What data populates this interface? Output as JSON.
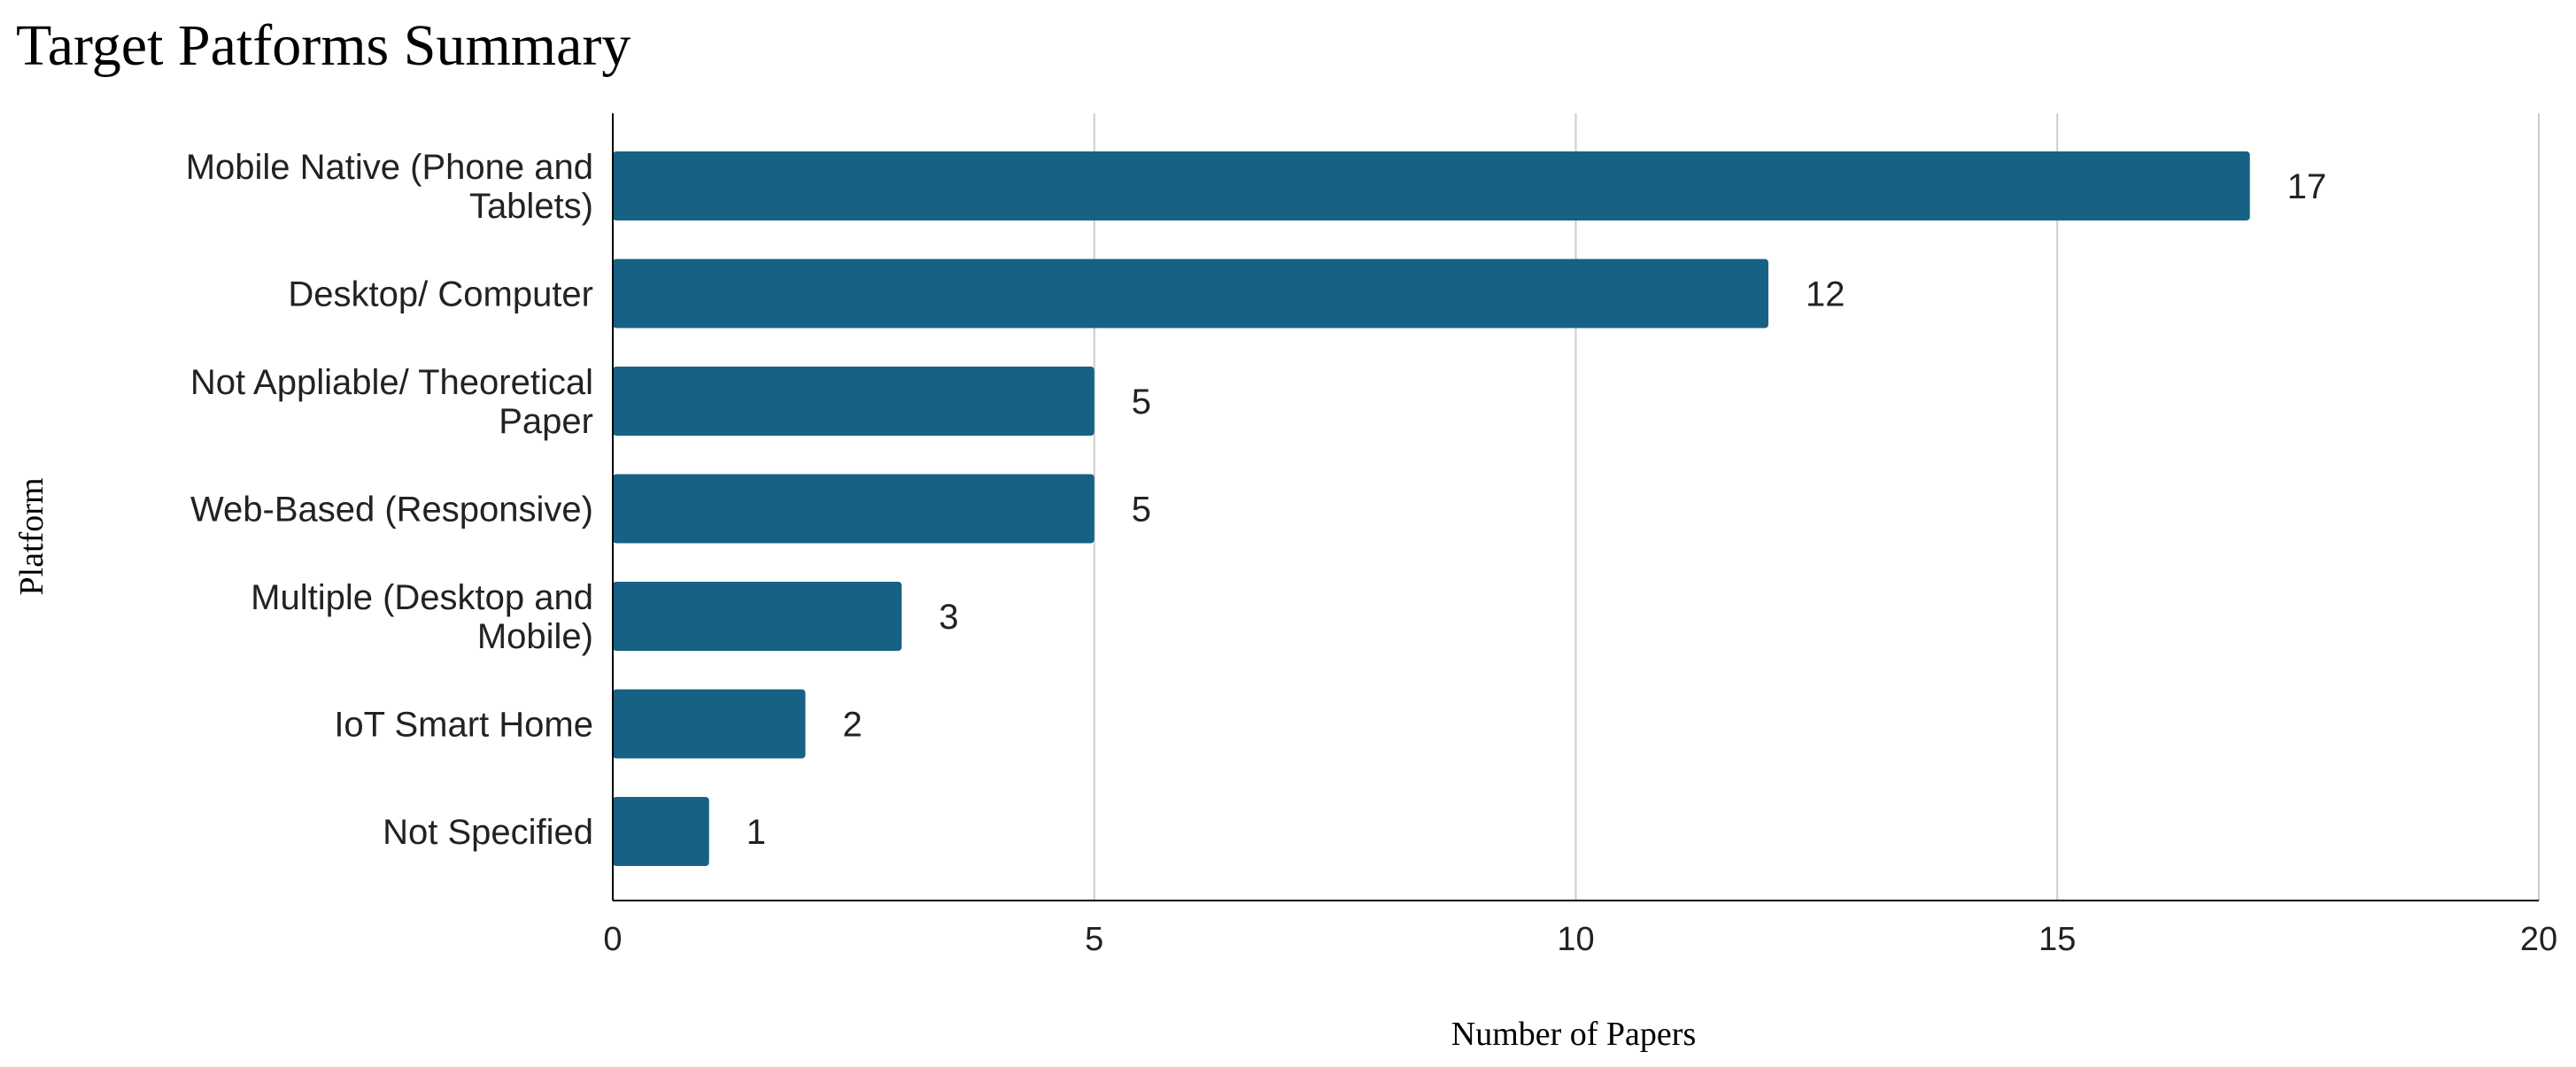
{
  "chart_data": {
    "type": "bar",
    "orientation": "horizontal",
    "title": "Target Patforms Summary",
    "xlabel": "Number of Papers",
    "ylabel": "Platform",
    "categories": [
      [
        "Mobile Native (Phone and",
        "Tablets)"
      ],
      [
        "Desktop/ Computer"
      ],
      [
        "Not Appliable/ Theoretical",
        "Paper"
      ],
      [
        "Web-Based (Responsive)"
      ],
      [
        "Multiple (Desktop and",
        "Mobile)"
      ],
      [
        "IoT Smart Home"
      ],
      [
        "Not Specified"
      ]
    ],
    "values": [
      17,
      12,
      5,
      5,
      3,
      2,
      1
    ],
    "data_labels": [
      "17",
      "12",
      "5",
      "5",
      "3",
      "2",
      "1"
    ],
    "xlim": [
      0,
      20
    ],
    "xticks": [
      0,
      5,
      10,
      15,
      20
    ],
    "xtick_labels": [
      "0",
      "5",
      "10",
      "15",
      "20"
    ],
    "grid": "vertical",
    "legend": "none",
    "bar_color": "#176184",
    "grid_color": "#cccccc",
    "axis_color": "#000000"
  }
}
